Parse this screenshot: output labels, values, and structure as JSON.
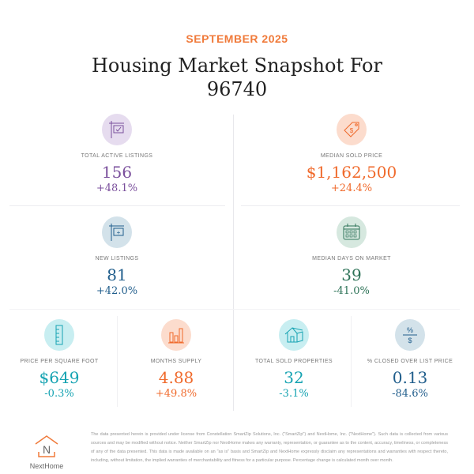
{
  "header": {
    "month": "SEPTEMBER 2025",
    "title_line1": "Housing Market Snapshot For",
    "title_line2": "96740"
  },
  "metrics": [
    {
      "label": "TOTAL ACTIVE LISTINGS",
      "value": "156",
      "change": "+48.1%",
      "color": "#7a4f9c",
      "icon": "sign-check-icon",
      "icon_bg": "#e6dcef"
    },
    {
      "label": "MEDIAN SOLD PRICE",
      "value": "$1,162,500",
      "change": "+24.4%",
      "color": "#f06a2c",
      "icon": "price-tag-icon",
      "icon_bg": "#fcdccd"
    },
    {
      "label": "NEW LISTINGS",
      "value": "81",
      "change": "+42.0%",
      "color": "#215e8c",
      "icon": "sign-plus-icon",
      "icon_bg": "#d3e2ea"
    },
    {
      "label": "MEDIAN DAYS ON MARKET",
      "value": "39",
      "change": "-41.0%",
      "color": "#2e7358",
      "icon": "calendar-icon",
      "icon_bg": "#d6e8df"
    },
    {
      "label": "PRICE PER SQUARE FOOT",
      "value": "$649",
      "change": "-0.3%",
      "color": "#16a3b2",
      "icon": "ruler-icon",
      "icon_bg": "#c8eef1"
    },
    {
      "label": "MONTHS SUPPLY",
      "value": "4.88",
      "change": "+49.8%",
      "color": "#f06a2c",
      "icon": "bar-chart-icon",
      "icon_bg": "#fcdccd"
    },
    {
      "label": "TOTAL SOLD PROPERTIES",
      "value": "32",
      "change": "-3.1%",
      "color": "#16a3b2",
      "icon": "house-icon",
      "icon_bg": "#c8eef1"
    },
    {
      "label": "% CLOSED OVER LIST PRICE",
      "value": "0.13",
      "change": "-84.6%",
      "color": "#215e8c",
      "icon": "percent-dollar-icon",
      "icon_bg": "#d3e2ea"
    }
  ],
  "footer": {
    "logo_text": "NextHome",
    "logo_letter": "N",
    "disclaimer": "The data presented herein is provided under license from Constellation SmartZip Solutions, Inc. (\"SmartZip\") and NextHome, Inc. (\"NextHome\"). Such data is collected from various sources and may be modified without notice. Neither SmartZip nor NextHome makes any warranty, representation, or guarantee as to the content, accuracy, timeliness, or completeness of any of the data presented. This data is made available on an \"as is\" basis and SmartZip and NextHome expressly disclaim any representations and warranties with respect thereto, including, without limitation, the implied warranties of merchantability and fitness for a particular purpose. Percentage change is calculated month over month."
  }
}
